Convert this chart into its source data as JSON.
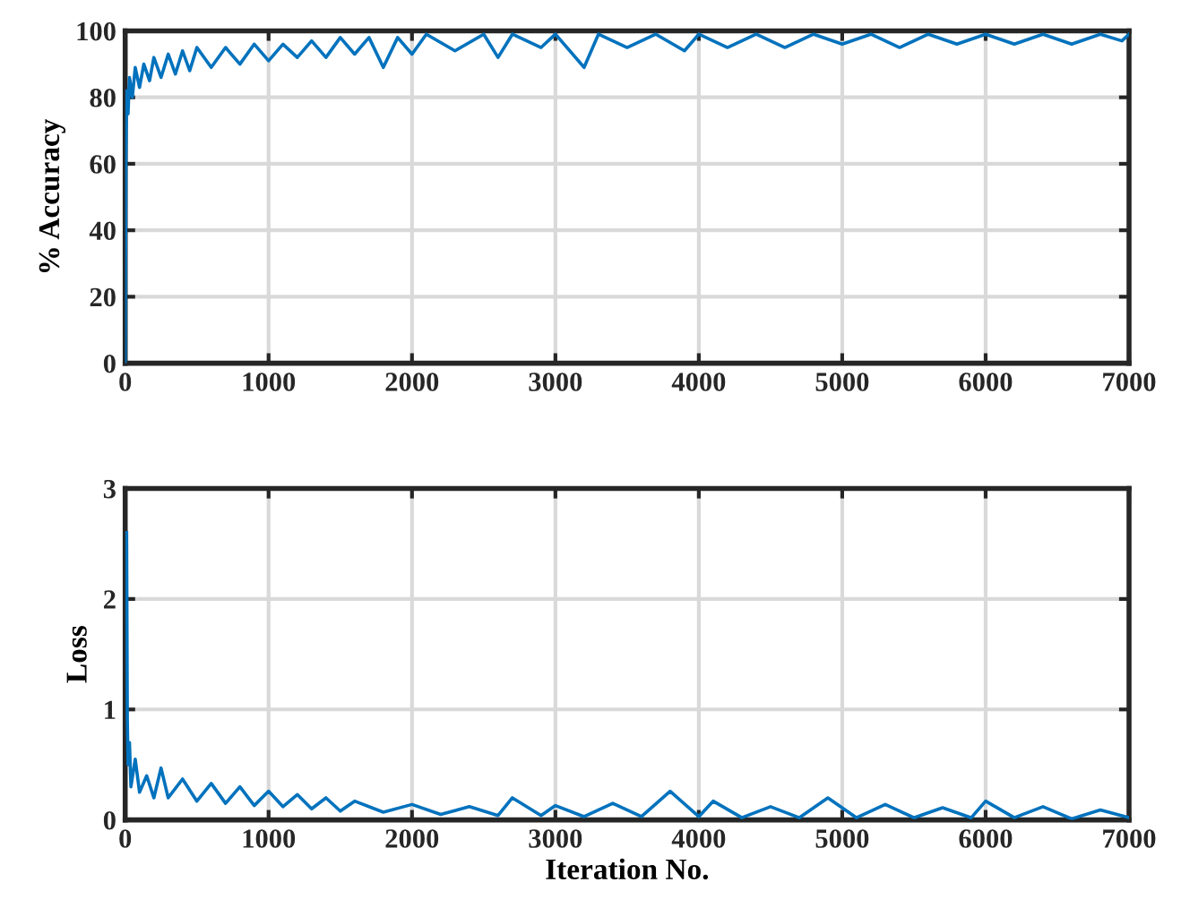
{
  "chart_data": [
    {
      "type": "line",
      "ylabel": "% Accuracy",
      "xlim": [
        0,
        7000
      ],
      "xticks": [
        0,
        1000,
        2000,
        3000,
        4000,
        5000,
        6000,
        7000
      ],
      "ylim": [
        0,
        100
      ],
      "yticks": [
        0,
        20,
        40,
        60,
        80,
        100
      ],
      "grid": true,
      "marker": "none",
      "line_style": "solid",
      "series": [
        {
          "color": "#0072bd",
          "x": [
            0,
            5,
            10,
            20,
            30,
            50,
            70,
            100,
            130,
            170,
            200,
            250,
            300,
            350,
            400,
            450,
            500,
            600,
            700,
            800,
            900,
            1000,
            1100,
            1200,
            1300,
            1400,
            1500,
            1600,
            1700,
            1800,
            1900,
            2000,
            2100,
            2300,
            2500,
            2600,
            2700,
            2900,
            3000,
            3200,
            3300,
            3500,
            3700,
            3900,
            4000,
            4200,
            4400,
            4600,
            4800,
            5000,
            5200,
            5400,
            5600,
            5800,
            6000,
            6200,
            6400,
            6600,
            6800,
            6950,
            7000
          ],
          "values": [
            0,
            60,
            82,
            75,
            86,
            80,
            89,
            83,
            90,
            85,
            92,
            86,
            93,
            87,
            94,
            88,
            95,
            89,
            95,
            90,
            96,
            91,
            96,
            92,
            97,
            92,
            98,
            93,
            98,
            89,
            98,
            93,
            99,
            94,
            99,
            92,
            99,
            95,
            99,
            89,
            99,
            95,
            99,
            94,
            99,
            95,
            99,
            95,
            99,
            96,
            99,
            95,
            99,
            96,
            99,
            96,
            99,
            96,
            99,
            97,
            99
          ]
        }
      ]
    },
    {
      "type": "line",
      "xlabel": "Iteration No.",
      "ylabel": "Loss",
      "xlim": [
        0,
        7000
      ],
      "xticks": [
        0,
        1000,
        2000,
        3000,
        4000,
        5000,
        6000,
        7000
      ],
      "ylim": [
        0,
        3
      ],
      "yticks": [
        0,
        1,
        2,
        3
      ],
      "grid": true,
      "marker": "none",
      "line_style": "solid",
      "series": [
        {
          "color": "#0072bd",
          "x": [
            10,
            15,
            20,
            30,
            40,
            70,
            100,
            150,
            200,
            250,
            300,
            400,
            500,
            600,
            700,
            800,
            900,
            1000,
            1100,
            1200,
            1300,
            1400,
            1500,
            1600,
            1800,
            2000,
            2200,
            2400,
            2600,
            2700,
            2900,
            3000,
            3200,
            3400,
            3600,
            3800,
            4000,
            4100,
            4300,
            4500,
            4700,
            4900,
            5100,
            5300,
            5500,
            5700,
            5900,
            6000,
            6200,
            6400,
            6600,
            6800,
            7000
          ],
          "values": [
            2.6,
            0.9,
            0.5,
            0.7,
            0.3,
            0.55,
            0.25,
            0.4,
            0.2,
            0.47,
            0.2,
            0.37,
            0.17,
            0.33,
            0.15,
            0.3,
            0.13,
            0.26,
            0.12,
            0.23,
            0.1,
            0.2,
            0.08,
            0.17,
            0.07,
            0.14,
            0.05,
            0.12,
            0.04,
            0.2,
            0.04,
            0.13,
            0.03,
            0.15,
            0.03,
            0.26,
            0.03,
            0.17,
            0.02,
            0.12,
            0.02,
            0.2,
            0.02,
            0.14,
            0.02,
            0.11,
            0.02,
            0.17,
            0.02,
            0.12,
            0.01,
            0.09,
            0.02
          ]
        }
      ]
    }
  ]
}
